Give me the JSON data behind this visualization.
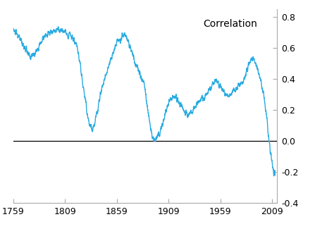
{
  "title": "Correlation",
  "xlim": [
    1759,
    2014
  ],
  "ylim": [
    -0.4,
    0.85
  ],
  "yticks": [
    -0.4,
    -0.2,
    0.0,
    0.2,
    0.4,
    0.6,
    0.8
  ],
  "xticks": [
    1759,
    1809,
    1859,
    1909,
    1959,
    2009
  ],
  "line_color": "#29ABE2",
  "zero_line_color": "#000000",
  "background_color": "#ffffff",
  "line_width": 1.0
}
